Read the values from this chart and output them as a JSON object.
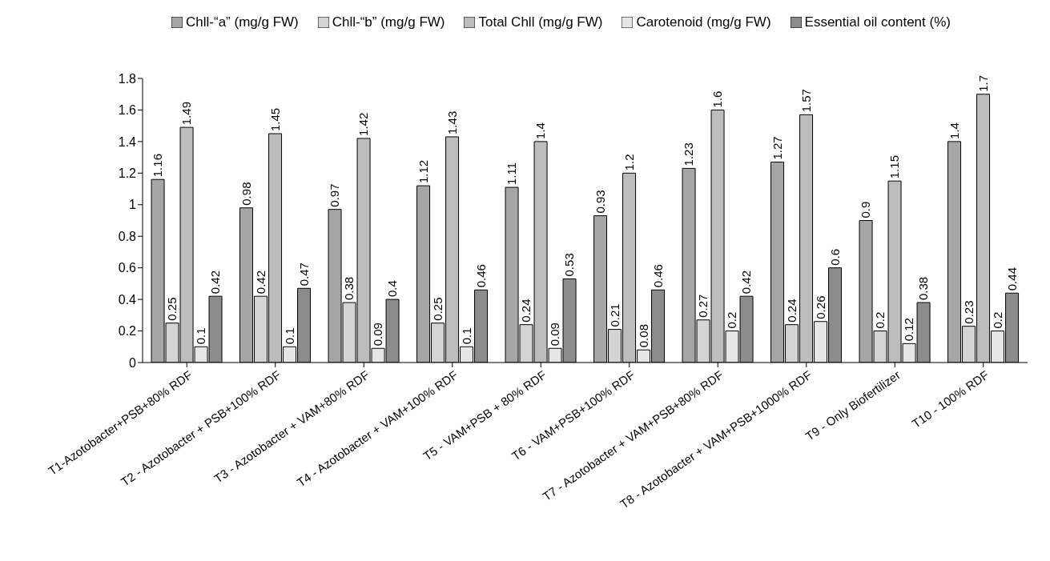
{
  "chart_data": {
    "type": "bar",
    "categories": [
      "T1-Azotobacter+PSB+80% RDF",
      "T2 - Azotobacter + PSB+100% RDF",
      "T3 - Azotobacter + VAM+80% RDF",
      "T4 - Azotobacter + VAM+100% RDF",
      "T5 - VAM+PSB + 80% RDF",
      "T6 - VAM+PSB+100% RDF",
      "T7 - Azotobacter + VAM+PSB+80% RDF",
      "T8 - Azotobacter + VAM+PSB+1000% RDF",
      "T9 - Only Biofertilizer",
      "T10 - 100% RDF"
    ],
    "series": [
      {
        "name": "Chll-“a” (mg/g FW)",
        "color": "#a6a6a6",
        "values": [
          1.16,
          0.98,
          0.97,
          1.12,
          1.11,
          0.93,
          1.23,
          1.27,
          0.9,
          1.4
        ]
      },
      {
        "name": "Chll-“b” (mg/g FW)",
        "color": "#d4d4d4",
        "values": [
          0.25,
          0.42,
          0.38,
          0.25,
          0.24,
          0.21,
          0.27,
          0.24,
          0.2,
          0.23
        ]
      },
      {
        "name": "Total Chll (mg/g FW)",
        "color": "#bdbdbd",
        "values": [
          1.49,
          1.45,
          1.42,
          1.43,
          1.4,
          1.2,
          1.6,
          1.57,
          1.15,
          1.7
        ]
      },
      {
        "name": "Carotenoid (mg/g FW)",
        "color": "#e6e6e6",
        "values": [
          0.1,
          0.1,
          0.09,
          0.1,
          0.09,
          0.08,
          0.2,
          0.26,
          0.12,
          0.2
        ]
      },
      {
        "name": "Essential oil content (%)",
        "color": "#8c8c8c",
        "values": [
          0.42,
          0.47,
          0.4,
          0.46,
          0.53,
          0.46,
          0.42,
          0.6,
          0.38,
          0.44
        ]
      }
    ],
    "ylim": [
      0,
      1.8
    ],
    "yticks": [
      0,
      0.2,
      0.4,
      0.6,
      0.8,
      1,
      1.2,
      1.4,
      1.6,
      1.8
    ],
    "data_labels": true,
    "legend": "top",
    "grid": false
  }
}
